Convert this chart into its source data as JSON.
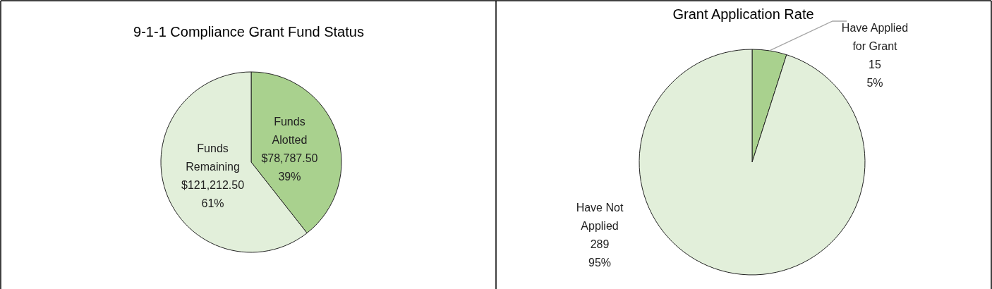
{
  "chart_data": [
    {
      "type": "pie",
      "title": "9-1-1 Compliance Grant Fund Status",
      "categories": [
        "Funds Alotted",
        "Funds Remaining"
      ],
      "values": [
        78787.5,
        121212.5
      ],
      "colors": [
        "#a9d18e",
        "#e2efda"
      ],
      "value_labels": [
        "$78,787.50\n39%",
        "$121,212.50\n61%"
      ]
    },
    {
      "type": "pie",
      "title": "Grant Application Rate",
      "categories": [
        "Have Applied for Grant",
        "Have Not Applied"
      ],
      "values": [
        15,
        289
      ],
      "colors": [
        "#a9d18e",
        "#e2efda"
      ],
      "value_labels": [
        "15\n5%",
        "289\n95%"
      ]
    }
  ]
}
